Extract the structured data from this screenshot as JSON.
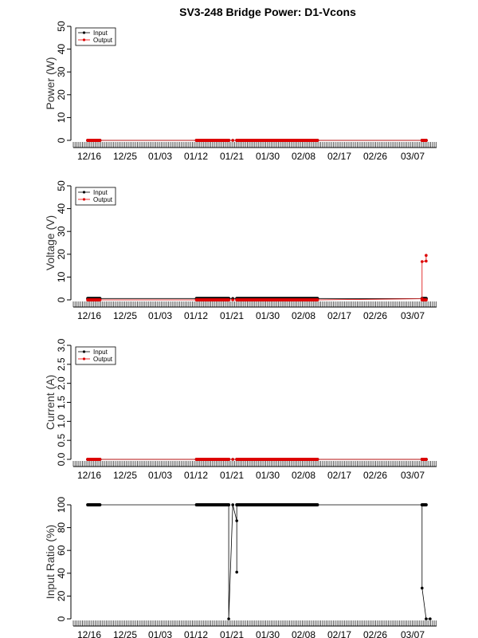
{
  "figure": {
    "title": "SV3-248 Bridge Power: D1-Vcons"
  },
  "x_tick_labels": [
    "12/16",
    "12/25",
    "01/03",
    "01/12",
    "01/21",
    "01/30",
    "02/08",
    "02/17",
    "02/26",
    "03/07"
  ],
  "legend": {
    "input_label": "Input",
    "output_label": "Output",
    "input_color": "#000000",
    "output_color": "#dd0000"
  },
  "chart_data": [
    {
      "type": "line",
      "title": "",
      "ylabel": "Power (W)",
      "xlabel": "",
      "x_range": [
        "12/13",
        "03/12"
      ],
      "ylim": [
        0,
        50
      ],
      "yticks": [
        0,
        10,
        20,
        30,
        40,
        50
      ],
      "ytick_labels": [
        "0",
        "10",
        "20",
        "30",
        "40",
        "50"
      ],
      "legend_position": "top-left",
      "series": [
        {
          "name": "Input",
          "color": "#000000",
          "points": [
            [
              "12/16",
              0
            ],
            [
              "12/17",
              0
            ],
            [
              "12/18",
              0
            ],
            [
              "12/19",
              0
            ],
            [
              "01/12",
              0
            ],
            [
              "01/15",
              0
            ],
            [
              "01/18",
              0
            ],
            [
              "01/21",
              0
            ],
            [
              "01/23",
              0
            ],
            [
              "01/27",
              0
            ],
            [
              "01/31",
              0
            ],
            [
              "02/04",
              0
            ],
            [
              "02/08",
              0
            ],
            [
              "02/11",
              0
            ],
            [
              "03/09",
              0
            ],
            [
              "03/10",
              0
            ]
          ]
        },
        {
          "name": "Output",
          "color": "#dd0000",
          "points": [
            [
              "12/16",
              0
            ],
            [
              "12/17",
              0
            ],
            [
              "12/18",
              0
            ],
            [
              "12/19",
              0
            ],
            [
              "01/12",
              0
            ],
            [
              "01/15",
              0
            ],
            [
              "01/18",
              0
            ],
            [
              "01/21",
              0
            ],
            [
              "01/23",
              0
            ],
            [
              "01/27",
              0
            ],
            [
              "01/31",
              0
            ],
            [
              "02/04",
              0
            ],
            [
              "02/08",
              0
            ],
            [
              "02/11",
              0
            ],
            [
              "03/09",
              0
            ],
            [
              "03/10",
              0
            ]
          ]
        }
      ]
    },
    {
      "type": "line",
      "title": "",
      "ylabel": "Voltage (V)",
      "xlabel": "",
      "x_range": [
        "12/13",
        "03/12"
      ],
      "ylim": [
        0,
        50
      ],
      "yticks": [
        0,
        10,
        20,
        30,
        40,
        50
      ],
      "ytick_labels": [
        "0",
        "10",
        "20",
        "30",
        "40",
        "50"
      ],
      "legend_position": "top-left",
      "series": [
        {
          "name": "Input",
          "color": "#000000",
          "points": [
            [
              "12/16",
              0.6
            ],
            [
              "12/17",
              0.6
            ],
            [
              "12/18",
              0.6
            ],
            [
              "12/19",
              0.6
            ],
            [
              "01/12",
              0.6
            ],
            [
              "01/15",
              0.6
            ],
            [
              "01/18",
              0.6
            ],
            [
              "01/21",
              0.6
            ],
            [
              "01/23",
              0.6
            ],
            [
              "01/27",
              0.6
            ],
            [
              "01/31",
              0.6
            ],
            [
              "02/04",
              0.6
            ],
            [
              "02/08",
              0.6
            ],
            [
              "02/11",
              0.6
            ],
            [
              "03/09",
              0.5
            ],
            [
              "03/10",
              0.4
            ]
          ]
        },
        {
          "name": "Output",
          "color": "#dd0000",
          "points": [
            [
              "12/16",
              0
            ],
            [
              "12/17",
              0
            ],
            [
              "12/18",
              0
            ],
            [
              "12/19",
              0
            ],
            [
              "01/12",
              0
            ],
            [
              "01/15",
              0
            ],
            [
              "01/18",
              0
            ],
            [
              "01/21",
              0
            ],
            [
              "01/23",
              0
            ],
            [
              "01/27",
              0
            ],
            [
              "01/31",
              0
            ],
            [
              "02/04",
              0
            ],
            [
              "02/08",
              0
            ],
            [
              "02/11",
              0
            ],
            [
              "03/09",
              0.5
            ],
            [
              "03/09",
              16.8
            ],
            [
              "03/10",
              17
            ],
            [
              "03/10",
              19.5
            ]
          ]
        }
      ]
    },
    {
      "type": "line",
      "title": "",
      "ylabel": "Current (A)",
      "xlabel": "",
      "x_range": [
        "12/13",
        "03/12"
      ],
      "ylim": [
        0,
        3
      ],
      "yticks": [
        0,
        0.5,
        1,
        1.5,
        2,
        2.5,
        3
      ],
      "ytick_labels": [
        "0.0",
        "0.5",
        "1.0",
        "1.5",
        "2.0",
        "2.5",
        "3.0"
      ],
      "legend_position": "top-left",
      "series": [
        {
          "name": "Input",
          "color": "#000000",
          "points": [
            [
              "12/16",
              0
            ],
            [
              "12/17",
              0
            ],
            [
              "12/18",
              0
            ],
            [
              "12/19",
              0
            ],
            [
              "01/12",
              0
            ],
            [
              "01/15",
              0
            ],
            [
              "01/18",
              0
            ],
            [
              "01/21",
              0
            ],
            [
              "01/23",
              0
            ],
            [
              "01/27",
              0
            ],
            [
              "01/31",
              0
            ],
            [
              "02/04",
              0
            ],
            [
              "02/08",
              0
            ],
            [
              "02/11",
              0
            ],
            [
              "03/09",
              0
            ],
            [
              "03/10",
              0
            ]
          ]
        },
        {
          "name": "Output",
          "color": "#dd0000",
          "points": [
            [
              "12/16",
              0
            ],
            [
              "12/17",
              0
            ],
            [
              "12/18",
              0
            ],
            [
              "12/19",
              0
            ],
            [
              "01/12",
              0
            ],
            [
              "01/15",
              0
            ],
            [
              "01/18",
              0
            ],
            [
              "01/21",
              0
            ],
            [
              "01/23",
              0
            ],
            [
              "01/27",
              0
            ],
            [
              "01/31",
              0
            ],
            [
              "02/04",
              0
            ],
            [
              "02/08",
              0
            ],
            [
              "02/11",
              0
            ],
            [
              "03/09",
              0
            ],
            [
              "03/10",
              0
            ]
          ]
        }
      ]
    },
    {
      "type": "line",
      "title": "",
      "ylabel": "Input Ratio (%)",
      "xlabel": "",
      "x_range": [
        "12/13",
        "03/12"
      ],
      "ylim": [
        0,
        100
      ],
      "yticks": [
        0,
        20,
        40,
        60,
        80,
        100
      ],
      "ytick_labels": [
        "0",
        "20",
        "40",
        "60",
        "80",
        "100"
      ],
      "legend_position": "none",
      "series": [
        {
          "name": "",
          "color": "#000000",
          "points": [
            [
              "12/16",
              100
            ],
            [
              "12/17",
              100
            ],
            [
              "12/18",
              100
            ],
            [
              "12/19",
              100
            ],
            [
              "01/12",
              100
            ],
            [
              "01/16",
              100
            ],
            [
              "01/19",
              100
            ],
            [
              "01/20",
              100
            ],
            [
              "01/20",
              0
            ],
            [
              "01/21",
              100
            ],
            [
              "01/21",
              100
            ],
            [
              "01/22",
              86
            ],
            [
              "01/22",
              41
            ],
            [
              "01/22",
              100
            ],
            [
              "01/27",
              100
            ],
            [
              "02/01",
              100
            ],
            [
              "02/06",
              100
            ],
            [
              "02/11",
              100
            ],
            [
              "03/09",
              100
            ],
            [
              "03/09",
              27
            ],
            [
              "03/10",
              0
            ],
            [
              "03/11",
              0
            ]
          ]
        }
      ]
    }
  ]
}
